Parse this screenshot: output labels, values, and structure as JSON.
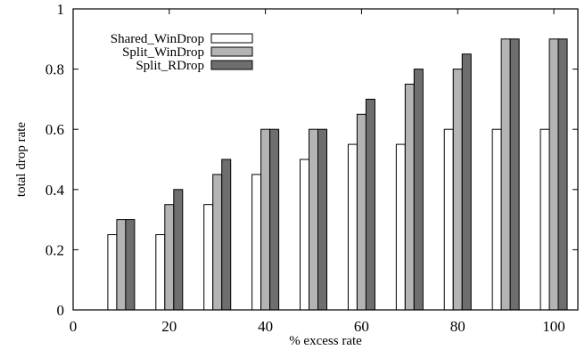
{
  "chart_data": {
    "type": "bar",
    "title": "",
    "xlabel": "% excess rate",
    "ylabel": "total drop rate",
    "xlim": [
      0,
      105
    ],
    "ylim": [
      0,
      1
    ],
    "x_ticks": [
      0,
      20,
      40,
      60,
      80,
      100
    ],
    "y_ticks": [
      0,
      0.2,
      0.4,
      0.6,
      0.8,
      1
    ],
    "y_tick_labels": [
      "0",
      "0.2",
      "0.4",
      "0.6",
      "0.8",
      "1"
    ],
    "categories": [
      10,
      20,
      30,
      40,
      50,
      60,
      70,
      80,
      90,
      100
    ],
    "series": [
      {
        "name": "Shared_WinDrop",
        "color": "#ffffff",
        "values": [
          0.25,
          0.25,
          0.35,
          0.45,
          0.5,
          0.55,
          0.55,
          0.6,
          0.6,
          0.6
        ]
      },
      {
        "name": "Split_WinDrop",
        "color": "#b4b4b4",
        "values": [
          0.3,
          0.35,
          0.45,
          0.6,
          0.6,
          0.65,
          0.75,
          0.8,
          0.9,
          0.9
        ]
      },
      {
        "name": "Split_RDrop",
        "color": "#6e6e6e",
        "values": [
          0.3,
          0.4,
          0.5,
          0.6,
          0.6,
          0.7,
          0.8,
          0.85,
          0.9,
          0.9
        ]
      }
    ],
    "grid": false,
    "legend_position": "top-left"
  }
}
